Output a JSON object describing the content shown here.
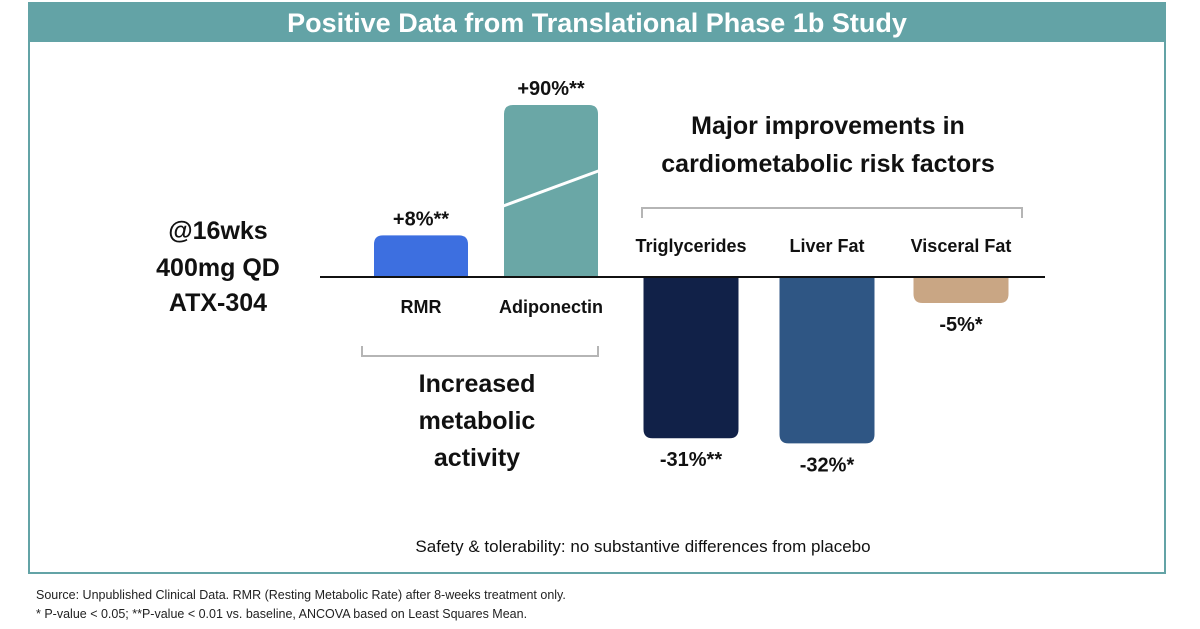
{
  "chart_data": {
    "type": "bar",
    "title": "Positive Data from Translational Phase 1b Study",
    "baseline": 0,
    "side_label": [
      "@16wks",
      "400mg QD",
      "ATX-304"
    ],
    "groups": [
      {
        "label_lines": [
          "Increased",
          "metabolic",
          "activity"
        ],
        "categories": [
          "RMR",
          "Adiponectin"
        ],
        "values": [
          8,
          90
        ],
        "value_labels": [
          "+8%**",
          "+90%**"
        ],
        "colors": [
          "#3d6fe0",
          "#6aa7a6"
        ],
        "axis_break": [
          false,
          true
        ]
      },
      {
        "label_lines": [
          "Major improvements in",
          "cardiometabolic risk factors"
        ],
        "categories": [
          "Triglycerides",
          "Liver Fat",
          "Visceral Fat"
        ],
        "values": [
          -31,
          -32,
          -5
        ],
        "value_labels": [
          "-31%**",
          "-32%*",
          "-5%*"
        ],
        "colors": [
          "#112148",
          "#2f5684",
          "#c9a684"
        ]
      }
    ],
    "safety_note": "Safety & tolerability: no substantive differences from placebo"
  },
  "footnotes": {
    "line1": "Source: Unpublished Clinical Data. RMR (Resting Metabolic Rate) after 8-weeks treatment only.",
    "line2": "* P-value < 0.05; **P-value < 0.01 vs. baseline, ANCOVA based on Least Squares Mean."
  }
}
